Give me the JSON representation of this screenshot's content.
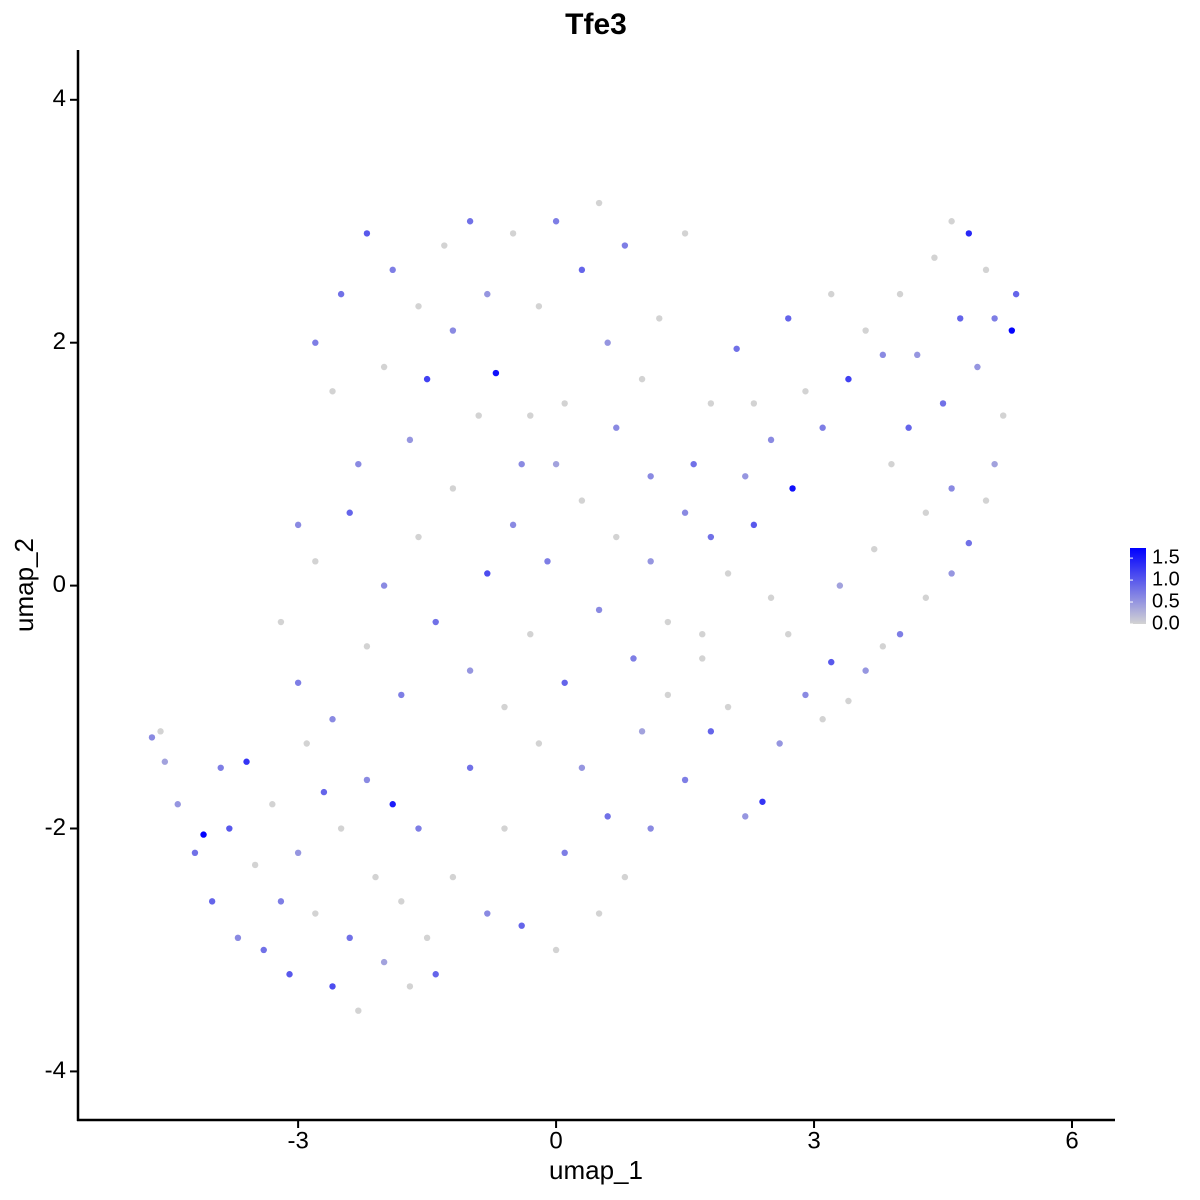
{
  "chart_data": {
    "type": "scatter",
    "title": "Tfe3",
    "x_label": "umap_1",
    "y_label": "umap_2",
    "xlim": [
      -5.56,
      6.5
    ],
    "ylim": [
      -4.4,
      4.41
    ],
    "xticks": [
      -3,
      0,
      3,
      6
    ],
    "yticks": [
      -4,
      -2,
      0,
      2,
      4
    ],
    "color_low": "#d3d3d3",
    "color_high": "#0000ff",
    "color_lim": [
      0,
      1.73
    ],
    "color_ticks": [
      {
        "value": 0,
        "label": "0.0"
      },
      {
        "value": 0.5,
        "label": "0.5"
      },
      {
        "value": 1,
        "label": "1.0"
      },
      {
        "value": 1.5,
        "label": "1.5"
      }
    ],
    "x": [
      -4.7,
      -4.6,
      -4.55,
      -4.4,
      -4.2,
      -4.1,
      -4.0,
      -3.9,
      -3.8,
      -3.7,
      -3.6,
      -3.5,
      -3.4,
      -3.3,
      -3.2,
      -3.1,
      -3.0,
      -2.9,
      -2.8,
      -2.7,
      -2.6,
      -2.5,
      -2.4,
      -2.3,
      -2.2,
      -2.1,
      -2.0,
      -1.9,
      -1.8,
      -1.7,
      -1.6,
      -1.5,
      -1.4,
      -1.2,
      -1.0,
      -0.8,
      -0.6,
      -0.4,
      -0.2,
      0,
      0.1,
      0.3,
      0.5,
      0.6,
      0.8,
      1.0,
      1.1,
      1.3,
      1.5,
      1.7,
      1.8,
      2.0,
      2.2,
      2.4,
      2.6,
      2.7,
      2.9,
      3.1,
      3.2,
      3.4,
      3.6,
      3.8,
      4.0,
      4.3,
      4.6,
      4.8,
      5.0,
      5.1,
      2.1,
      2.3,
      2.5,
      2.7,
      2.75,
      2.9,
      3.1,
      3.2,
      3.4,
      3.6,
      3.8,
      3.9,
      4.0,
      4.1,
      4.2,
      4.3,
      4.4,
      4.5,
      4.6,
      4.7,
      4.8,
      4.9,
      5.0,
      5.1,
      5.2,
      5.3,
      5.35,
      4.6,
      3.7,
      3.3,
      -2.8,
      -2.6,
      -2.5,
      -2.3,
      -2.2,
      -2.0,
      -1.9,
      -1.7,
      -1.6,
      -1.5,
      -1.3,
      -1.2,
      -1.0,
      -0.9,
      -0.8,
      -0.7,
      -0.5,
      -0.4,
      -0.2,
      0,
      0.1,
      0.3,
      0.5,
      0.6,
      0.8,
      1.0,
      1.1,
      1.2,
      1.5,
      1.6,
      1.8,
      -3.0,
      -3.2,
      -3.0,
      -2.8,
      -2.6,
      -2.4,
      -2.2,
      -2.0,
      -1.8,
      -1.6,
      -1.4,
      -1.2,
      -1.0,
      -0.8,
      -0.6,
      -0.5,
      -0.3,
      -0.1,
      0.1,
      0.3,
      0.5,
      0.7,
      0.9,
      1.1,
      1.3,
      1.5,
      1.7,
      1.8,
      2.0,
      2.2,
      2.3,
      2.5,
      0,
      -0.3,
      0.7
    ],
    "values": [
      -1.25,
      -1.2,
      -1.45,
      -1.8,
      -2.2,
      -2.05,
      -2.6,
      -1.5,
      -2.0,
      -2.9,
      -1.45,
      -2.3,
      -3.0,
      -1.8,
      -2.6,
      -3.2,
      -2.2,
      -1.3,
      -2.7,
      -1.7,
      -3.3,
      -2.0,
      -2.9,
      -3.5,
      -1.6,
      -2.4,
      -3.1,
      -1.8,
      -2.6,
      -3.3,
      -2.0,
      -2.9,
      -3.2,
      -2.4,
      -1.5,
      -2.7,
      -2.0,
      -2.8,
      -1.3,
      -3.0,
      -2.2,
      -1.5,
      -2.7,
      -1.9,
      -2.4,
      -1.2,
      -2.0,
      -0.9,
      -1.6,
      -0.6,
      -1.2,
      -1.0,
      -1.9,
      -1.78,
      -1.3,
      -0.4,
      -0.9,
      -1.1,
      -0.63,
      -0.95,
      -0.7,
      -0.5,
      -0.4,
      -0.1,
      0.1,
      0.35,
      0.7,
      1.0,
      1.95,
      1.5,
      1.2,
      2.2,
      0.8,
      1.6,
      1.3,
      2.4,
      1.7,
      2.1,
      1.9,
      1.0,
      2.4,
      1.3,
      1.9,
      0.6,
      2.7,
      1.5,
      3.0,
      2.2,
      2.9,
      1.8,
      2.6,
      2.2,
      1.4,
      2.1,
      2.4,
      0.8,
      0.3,
      0.0,
      2.0,
      1.6,
      2.4,
      1.0,
      2.9,
      1.8,
      2.6,
      1.2,
      2.3,
      1.7,
      2.8,
      2.1,
      3.0,
      1.4,
      2.4,
      1.75,
      2.9,
      1.0,
      2.3,
      3.0,
      1.5,
      2.6,
      3.15,
      2.0,
      2.8,
      1.7,
      0.9,
      2.2,
      2.9,
      1.0,
      1.5,
      0.5,
      -0.3,
      -0.8,
      0.2,
      -1.1,
      0.6,
      -0.5,
      0.0,
      -0.9,
      0.4,
      -0.3,
      0.8,
      -0.7,
      0.1,
      -1.0,
      0.5,
      -0.4,
      0.2,
      -0.8,
      0.7,
      -0.2,
      0.4,
      -0.6,
      0.2,
      -0.3,
      0.6,
      -0.4,
      0.4,
      0.1,
      0.9,
      0.5,
      -0.1,
      1.0,
      1.4,
      1.3
    ],
    "expression": [
      0.6,
      0,
      0.4,
      0.5,
      0.8,
      1.7,
      0.9,
      0.7,
      1.0,
      0.6,
      1.3,
      0,
      0.8,
      0,
      0.7,
      1.0,
      0.5,
      0,
      0,
      0.9,
      1.1,
      0,
      0.8,
      0,
      0.6,
      0,
      0.4,
      1.5,
      0,
      0,
      0.7,
      0,
      0.9,
      0,
      0.8,
      0.6,
      0,
      0.9,
      0,
      0,
      0.7,
      0.5,
      0,
      0.8,
      0,
      0.4,
      0.6,
      0,
      0.7,
      0,
      0.9,
      0,
      0.5,
      1.3,
      0.5,
      0,
      0.6,
      0,
      1.0,
      0,
      0.5,
      0,
      0.7,
      0,
      0.5,
      0.8,
      0,
      0.4,
      0.8,
      0,
      0.6,
      0.9,
      1.6,
      0,
      0.7,
      0,
      1.2,
      0,
      0.6,
      0,
      0,
      0.9,
      0.5,
      0,
      0,
      0.8,
      0,
      0.9,
      1.4,
      0.5,
      0,
      0.7,
      0,
      1.7,
      0.9,
      0.6,
      0,
      0.4,
      0.7,
      0,
      0.8,
      0.6,
      1.0,
      0,
      0.7,
      0.5,
      0,
      1.2,
      0,
      0.6,
      0.8,
      0,
      0.5,
      1.6,
      0,
      0.6,
      0,
      0.7,
      0,
      0.9,
      0,
      0.5,
      0.7,
      0,
      0.6,
      0,
      0,
      0.8,
      0,
      0.6,
      0,
      0.7,
      0,
      0.6,
      0.9,
      0,
      0.6,
      0.7,
      0,
      0.8,
      0,
      0.5,
      1.1,
      0,
      0.6,
      0,
      0.7,
      0.9,
      0,
      0.6,
      0,
      0.7,
      0.5,
      0,
      0.6,
      0,
      0.8,
      0,
      0.5,
      1.0,
      0,
      0.4,
      0,
      0.6
    ]
  }
}
